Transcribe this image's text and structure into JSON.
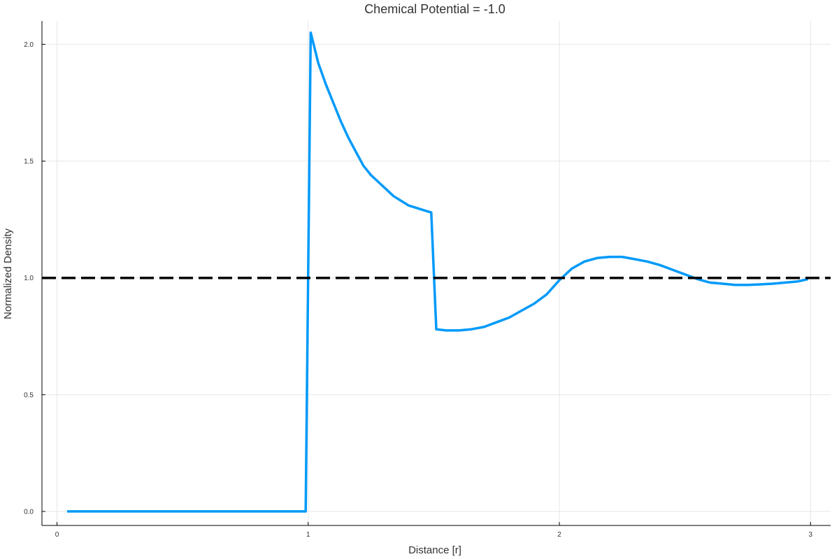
{
  "chart_data": {
    "type": "line",
    "title": "Chemical Potential = -1.0",
    "xlabel": "Distance [r]",
    "ylabel": "Normalized Density",
    "xlim": [
      -0.06,
      3.08
    ],
    "ylim": [
      -0.06,
      2.1
    ],
    "grid": true,
    "legend": "none",
    "xticks": [
      {
        "value": 0,
        "label": "0"
      },
      {
        "value": 1,
        "label": "1"
      },
      {
        "value": 2,
        "label": "2"
      },
      {
        "value": 3,
        "label": "3"
      }
    ],
    "yticks": [
      {
        "value": 0.0,
        "label": "0.0"
      },
      {
        "value": 0.5,
        "label": "0.5"
      },
      {
        "value": 1.0,
        "label": "1.0"
      },
      {
        "value": 1.5,
        "label": "1.5"
      },
      {
        "value": 2.0,
        "label": "2.0"
      }
    ],
    "series": [
      {
        "color": "#009af9",
        "style": "solid",
        "x": [
          0.04,
          0.5,
          0.99,
          1.01,
          1.04,
          1.07,
          1.1,
          1.13,
          1.16,
          1.19,
          1.22,
          1.25,
          1.28,
          1.31,
          1.34,
          1.37,
          1.4,
          1.43,
          1.46,
          1.49,
          1.51,
          1.55,
          1.6,
          1.65,
          1.7,
          1.75,
          1.8,
          1.85,
          1.9,
          1.95,
          2.0,
          2.05,
          2.1,
          2.15,
          2.2,
          2.25,
          2.3,
          2.35,
          2.4,
          2.45,
          2.5,
          2.55,
          2.6,
          2.65,
          2.7,
          2.75,
          2.8,
          2.85,
          2.9,
          2.95,
          2.99
        ],
        "y": [
          0.0,
          0.0,
          0.0,
          2.05,
          1.92,
          1.83,
          1.75,
          1.67,
          1.6,
          1.54,
          1.48,
          1.44,
          1.41,
          1.38,
          1.35,
          1.33,
          1.31,
          1.3,
          1.29,
          1.28,
          0.78,
          0.775,
          0.775,
          0.78,
          0.79,
          0.81,
          0.83,
          0.86,
          0.89,
          0.93,
          0.99,
          1.04,
          1.07,
          1.085,
          1.09,
          1.09,
          1.08,
          1.07,
          1.055,
          1.035,
          1.015,
          0.995,
          0.98,
          0.975,
          0.97,
          0.97,
          0.972,
          0.975,
          0.98,
          0.985,
          0.995
        ]
      },
      {
        "color": "#000000",
        "style": "dashed",
        "x": [
          -0.06,
          3.08
        ],
        "y": [
          1.0,
          1.0
        ]
      }
    ]
  }
}
